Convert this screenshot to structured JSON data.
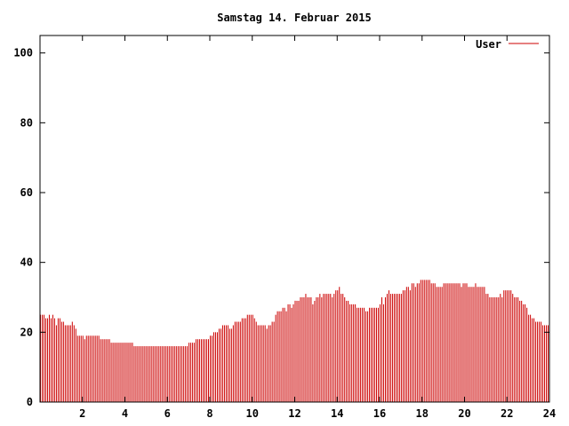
{
  "chart_data": {
    "type": "bar",
    "title": "Samstag 14. Februar 2015",
    "xlabel": "",
    "ylabel": "",
    "xlim": [
      0,
      24
    ],
    "ylim": [
      0,
      105
    ],
    "x_ticks": [
      2,
      4,
      6,
      8,
      10,
      12,
      14,
      16,
      18,
      20,
      22,
      24
    ],
    "y_ticks": [
      0,
      20,
      40,
      60,
      80,
      100
    ],
    "grid": false,
    "legend_position": "top-right",
    "bar_color": "#cc0000",
    "interval_minutes": 5,
    "series": [
      {
        "name": "User",
        "values": [
          25,
          25,
          25,
          24,
          24,
          25,
          24,
          25,
          24,
          22,
          24,
          24,
          23,
          23,
          22,
          22,
          22,
          22,
          23,
          22,
          21,
          19,
          19,
          19,
          19,
          18,
          19,
          19,
          19,
          19,
          19,
          19,
          19,
          19,
          18,
          18,
          18,
          18,
          18,
          18,
          17,
          17,
          17,
          17,
          17,
          17,
          17,
          17,
          17,
          17,
          17,
          17,
          17,
          16,
          16,
          16,
          16,
          16,
          16,
          16,
          16,
          16,
          16,
          16,
          16,
          16,
          16,
          16,
          16,
          16,
          16,
          16,
          16,
          16,
          16,
          16,
          16,
          16,
          16,
          16,
          16,
          16,
          16,
          16,
          17,
          17,
          17,
          17,
          18,
          18,
          18,
          18,
          18,
          18,
          18,
          18,
          19,
          19,
          20,
          20,
          20,
          21,
          21,
          22,
          22,
          22,
          22,
          21,
          21,
          22,
          23,
          23,
          23,
          23,
          24,
          24,
          24,
          25,
          25,
          25,
          25,
          24,
          23,
          22,
          22,
          22,
          22,
          22,
          21,
          22,
          22,
          23,
          23,
          25,
          26,
          26,
          26,
          27,
          27,
          26,
          28,
          28,
          27,
          28,
          29,
          29,
          29,
          30,
          30,
          30,
          31,
          30,
          30,
          30,
          28,
          29,
          30,
          30,
          31,
          30,
          31,
          31,
          31,
          31,
          31,
          30,
          31,
          32,
          32,
          33,
          31,
          31,
          30,
          29,
          29,
          28,
          28,
          28,
          28,
          27,
          27,
          27,
          27,
          27,
          26,
          26,
          27,
          27,
          27,
          27,
          27,
          27,
          28,
          30,
          28,
          30,
          31,
          32,
          31,
          31,
          31,
          31,
          31,
          31,
          31,
          32,
          32,
          33,
          33,
          32,
          34,
          34,
          33,
          34,
          34,
          35,
          35,
          35,
          35,
          35,
          35,
          34,
          34,
          34,
          33,
          33,
          33,
          33,
          34,
          34,
          34,
          34,
          34,
          34,
          34,
          34,
          34,
          34,
          33,
          34,
          34,
          34,
          33,
          33,
          33,
          33,
          34,
          33,
          33,
          33,
          33,
          33,
          31,
          31,
          30,
          30,
          30,
          30,
          30,
          30,
          31,
          30,
          32,
          32,
          32,
          32,
          32,
          31,
          30,
          30,
          30,
          29,
          29,
          28,
          28,
          27,
          25,
          25,
          24,
          24,
          23,
          23,
          23,
          23,
          22,
          22,
          22,
          22
        ]
      }
    ]
  }
}
